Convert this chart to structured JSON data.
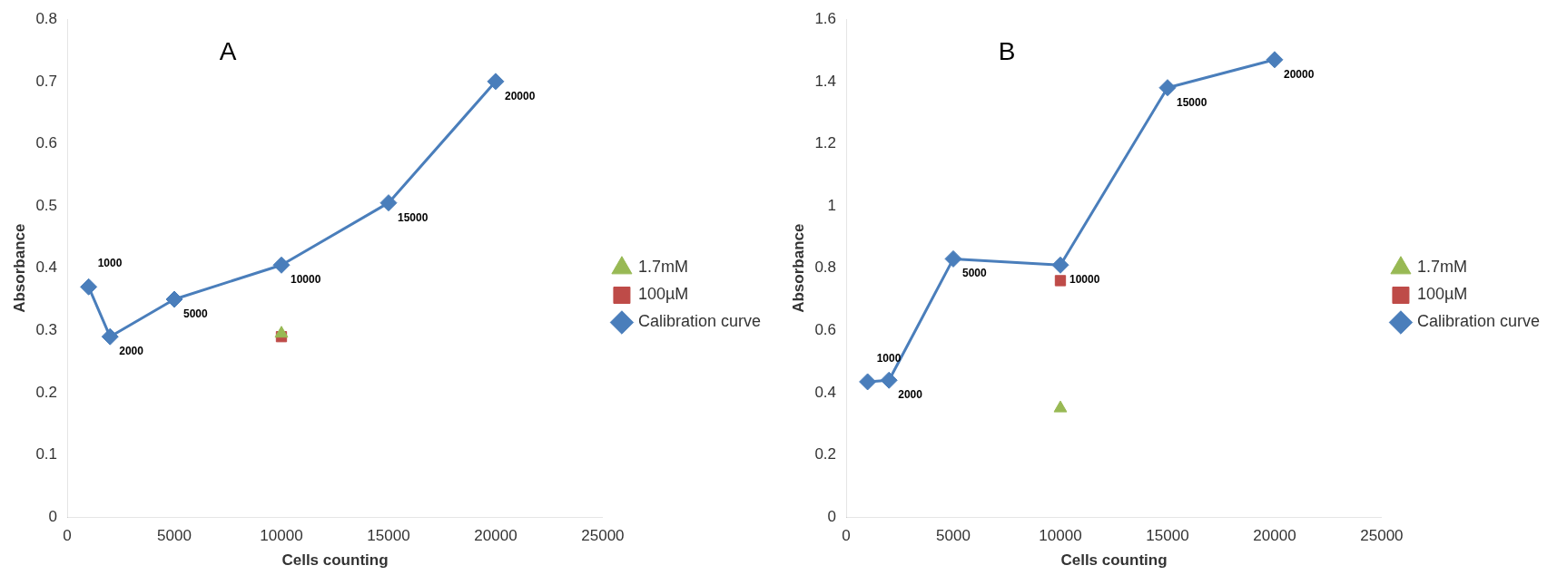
{
  "chart_data": [
    {
      "type": "line",
      "title": "A",
      "xlabel": "Cells counting",
      "ylabel": "Absorbance",
      "xlim": [
        0,
        25000
      ],
      "xticks": [
        0,
        5000,
        10000,
        15000,
        20000,
        25000
      ],
      "ylim": [
        0,
        0.8
      ],
      "yticks": [
        0,
        0.1,
        0.2,
        0.3,
        0.4,
        0.5,
        0.6,
        0.7,
        0.8
      ],
      "grid": false,
      "legend": "right",
      "series": [
        {
          "name": "Calibration curve",
          "marker": "diamond",
          "color": "#4a7ebb",
          "x": [
            1000,
            2000,
            5000,
            10000,
            15000,
            20000
          ],
          "values": [
            0.37,
            0.29,
            0.35,
            0.405,
            0.505,
            0.7
          ]
        },
        {
          "name": "100µM",
          "type": "scatter",
          "marker": "square",
          "color": "#be4b48",
          "x": [
            10000
          ],
          "values": [
            0.29
          ]
        },
        {
          "name": "1.7mM",
          "type": "scatter",
          "marker": "triangle",
          "color": "#98b954",
          "x": [
            10000
          ],
          "values": [
            0.295
          ]
        }
      ],
      "annotations": [
        {
          "text": "1000",
          "x": 1000,
          "y": 0.37
        },
        {
          "text": "2000",
          "x": 2000,
          "y": 0.29
        },
        {
          "text": "5000",
          "x": 5000,
          "y": 0.35
        },
        {
          "text": "10000",
          "x": 10000,
          "y": 0.405
        },
        {
          "text": "15000",
          "x": 15000,
          "y": 0.505
        },
        {
          "text": "20000",
          "x": 20000,
          "y": 0.7
        }
      ]
    },
    {
      "type": "line",
      "title": "B",
      "xlabel": "Cells counting",
      "ylabel": "Absorbance",
      "xlim": [
        0,
        25000
      ],
      "xticks": [
        0,
        5000,
        10000,
        15000,
        20000,
        25000
      ],
      "ylim": [
        0,
        1.6
      ],
      "yticks": [
        0,
        0.2,
        0.4,
        0.6,
        0.8,
        1,
        1.2,
        1.4,
        1.6
      ],
      "grid": false,
      "legend": "right",
      "series": [
        {
          "name": "Calibration curve",
          "marker": "diamond",
          "color": "#4a7ebb",
          "x": [
            1000,
            2000,
            5000,
            10000,
            15000,
            20000
          ],
          "values": [
            0.435,
            0.44,
            0.83,
            0.81,
            1.38,
            1.47
          ]
        },
        {
          "name": "100µM",
          "type": "scatter",
          "marker": "square",
          "color": "#be4b48",
          "x": [
            10000
          ],
          "values": [
            0.76
          ]
        },
        {
          "name": "1.7mM",
          "type": "scatter",
          "marker": "triangle",
          "color": "#98b954",
          "x": [
            10000
          ],
          "values": [
            0.35
          ]
        }
      ],
      "annotations": [
        {
          "text": "1000",
          "x": 1000,
          "y": 0.435
        },
        {
          "text": "2000",
          "x": 2000,
          "y": 0.44
        },
        {
          "text": "5000",
          "x": 5000,
          "y": 0.83
        },
        {
          "text": "10000",
          "x": 10000,
          "y": 0.81
        },
        {
          "text": "15000",
          "x": 15000,
          "y": 1.38
        },
        {
          "text": "20000",
          "x": 20000,
          "y": 1.47
        }
      ]
    }
  ]
}
